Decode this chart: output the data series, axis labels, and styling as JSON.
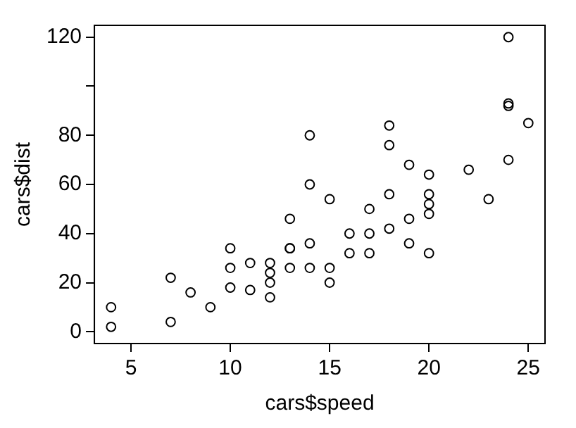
{
  "chart_data": {
    "type": "scatter",
    "xlabel": "cars$speed",
    "ylabel": "cars$dist",
    "x": [
      4,
      4,
      7,
      7,
      8,
      9,
      10,
      10,
      10,
      11,
      11,
      12,
      12,
      12,
      12,
      13,
      13,
      13,
      13,
      14,
      14,
      14,
      14,
      15,
      15,
      15,
      16,
      16,
      17,
      17,
      17,
      18,
      18,
      18,
      18,
      19,
      19,
      19,
      20,
      20,
      20,
      20,
      20,
      22,
      23,
      24,
      24,
      24,
      24,
      25
    ],
    "series": [
      {
        "color": "#000000",
        "values": [
          2,
          10,
          4,
          22,
          16,
          10,
          18,
          26,
          34,
          17,
          28,
          14,
          20,
          24,
          28,
          26,
          34,
          34,
          46,
          26,
          36,
          60,
          80,
          20,
          26,
          54,
          32,
          40,
          32,
          40,
          50,
          42,
          56,
          76,
          84,
          36,
          46,
          68,
          32,
          48,
          52,
          56,
          64,
          66,
          54,
          70,
          92,
          93,
          120,
          85
        ]
      }
    ],
    "xlim": [
      3.16,
      25.84
    ],
    "xticks": [
      5,
      10,
      15,
      20,
      25
    ],
    "ylim": [
      -4.8,
      124.8
    ],
    "yticks": [
      0,
      20,
      40,
      60,
      80,
      {
        "value": 100,
        "label": null
      },
      120
    ],
    "marker": "circle",
    "grid": false,
    "legend": false
  }
}
